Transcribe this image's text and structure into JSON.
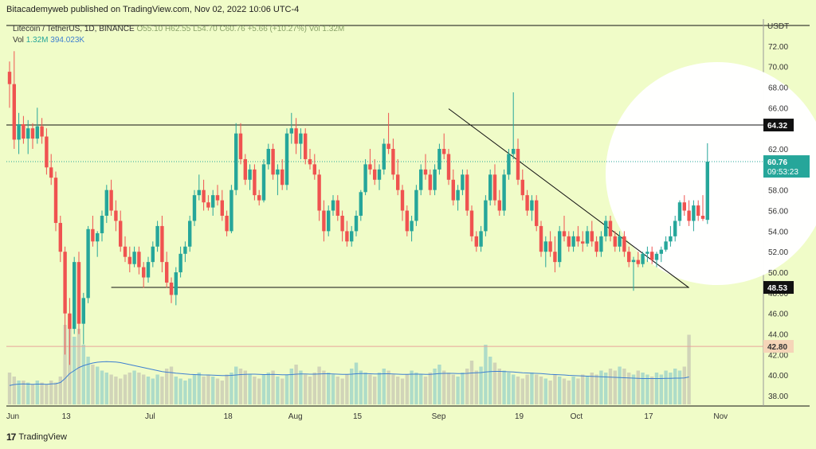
{
  "header": {
    "publish_text": "Bitacademyweb published on TradingView.com, Nov 02, 2022 10:06 UTC-4"
  },
  "legend": {
    "symbol": "Litecoin / TetherUS, 1D, BINANCE",
    "open": "O55.10",
    "high": "H62.55",
    "low": "L54.70",
    "close": "C60.76",
    "change": "+5.66 (+10.27%)",
    "volume": "Vol 1.32M",
    "vol_label": "Vol",
    "vol_value": "1.32M",
    "vol_ma": "394.023K"
  },
  "footer": {
    "brand": "TradingView",
    "logo": "17"
  },
  "colors": {
    "up": "#26a69a",
    "down": "#ef5350",
    "vol_ma": "#3d7fd1",
    "background": "#f0fcc8"
  },
  "chart_data": {
    "type": "candlestick",
    "currency_label": "USDT",
    "ylim": [
      37,
      74
    ],
    "y_ticks": [
      38,
      40,
      42,
      44,
      46,
      48,
      50,
      52,
      54,
      56,
      58,
      60,
      62,
      64,
      66,
      68,
      70,
      72
    ],
    "x_tick_labels": [
      {
        "label": "Jun",
        "day": 0
      },
      {
        "label": "13",
        "day": 12
      },
      {
        "label": "Jul",
        "day": 30
      },
      {
        "label": "18",
        "day": 47
      },
      {
        "label": "Aug",
        "day": 61
      },
      {
        "label": "15",
        "day": 75
      },
      {
        "label": "Sep",
        "day": 92
      },
      {
        "label": "19",
        "day": 110
      },
      {
        "label": "Oct",
        "day": 122
      },
      {
        "label": "17",
        "day": 138
      },
      {
        "label": "Nov",
        "day": 153
      }
    ],
    "price_levels": [
      {
        "value": 64.32,
        "label": "64.32"
      },
      {
        "value": 48.53,
        "label": "48.53"
      },
      {
        "value": 42.8,
        "label": "42.80"
      }
    ],
    "current_price": {
      "value": 60.76,
      "label": "60.76",
      "countdown": "09:53:23"
    },
    "trendline": {
      "start": {
        "day": 95,
        "price": 65.9
      },
      "end": {
        "day": 147,
        "price": 48.5
      }
    },
    "support_line": {
      "start_day": 22,
      "end_day": 147,
      "price": 48.53
    },
    "resistance_line": {
      "price": 64.32
    },
    "candles": [
      {
        "o": 69.5,
        "h": 70.5,
        "l": 66.0,
        "c": 68.3
      },
      {
        "o": 68.3,
        "h": 71.5,
        "l": 62.0,
        "c": 62.9
      },
      {
        "o": 62.9,
        "h": 65.5,
        "l": 61.5,
        "c": 64.4
      },
      {
        "o": 64.4,
        "h": 65.2,
        "l": 62.5,
        "c": 63.0
      },
      {
        "o": 63.0,
        "h": 64.8,
        "l": 61.5,
        "c": 64.0
      },
      {
        "o": 64.0,
        "h": 64.5,
        "l": 62.0,
        "c": 63.0
      },
      {
        "o": 63.0,
        "h": 66.0,
        "l": 62.5,
        "c": 64.2
      },
      {
        "o": 64.2,
        "h": 65.0,
        "l": 62.5,
        "c": 63.2
      },
      {
        "o": 63.2,
        "h": 64.0,
        "l": 59.5,
        "c": 60.2
      },
      {
        "o": 60.2,
        "h": 61.5,
        "l": 58.5,
        "c": 59.2
      },
      {
        "o": 59.2,
        "h": 59.8,
        "l": 54.0,
        "c": 54.8
      },
      {
        "o": 54.8,
        "h": 55.5,
        "l": 51.0,
        "c": 52.0
      },
      {
        "o": 52.0,
        "h": 52.5,
        "l": 42.0,
        "c": 46.0
      },
      {
        "o": 46.0,
        "h": 47.5,
        "l": 41.0,
        "c": 44.5
      },
      {
        "o": 44.5,
        "h": 51.5,
        "l": 44.0,
        "c": 51.0
      },
      {
        "o": 51.0,
        "h": 52.0,
        "l": 44.0,
        "c": 45.0
      },
      {
        "o": 45.0,
        "h": 48.0,
        "l": 43.0,
        "c": 47.5
      },
      {
        "o": 47.5,
        "h": 54.5,
        "l": 47.0,
        "c": 54.2
      },
      {
        "o": 54.2,
        "h": 55.5,
        "l": 52.5,
        "c": 53.0
      },
      {
        "o": 53.0,
        "h": 54.0,
        "l": 51.5,
        "c": 53.8
      },
      {
        "o": 53.8,
        "h": 56.0,
        "l": 53.0,
        "c": 55.5
      },
      {
        "o": 55.5,
        "h": 58.5,
        "l": 54.8,
        "c": 58.0
      },
      {
        "o": 58.0,
        "h": 59.0,
        "l": 55.5,
        "c": 56.0
      },
      {
        "o": 56.0,
        "h": 57.0,
        "l": 54.0,
        "c": 55.0
      },
      {
        "o": 55.0,
        "h": 56.0,
        "l": 52.0,
        "c": 52.5
      },
      {
        "o": 52.5,
        "h": 53.5,
        "l": 51.0,
        "c": 51.5
      },
      {
        "o": 51.5,
        "h": 52.5,
        "l": 50.0,
        "c": 50.8
      },
      {
        "o": 50.8,
        "h": 52.5,
        "l": 50.5,
        "c": 52.0
      },
      {
        "o": 52.0,
        "h": 52.5,
        "l": 49.8,
        "c": 50.5
      },
      {
        "o": 50.5,
        "h": 51.0,
        "l": 48.5,
        "c": 49.5
      },
      {
        "o": 49.5,
        "h": 51.5,
        "l": 49.0,
        "c": 51.0
      },
      {
        "o": 51.0,
        "h": 53.0,
        "l": 50.5,
        "c": 52.5
      },
      {
        "o": 52.5,
        "h": 55.0,
        "l": 52.0,
        "c": 54.5
      },
      {
        "o": 54.5,
        "h": 55.5,
        "l": 50.0,
        "c": 51.0
      },
      {
        "o": 51.0,
        "h": 52.0,
        "l": 48.5,
        "c": 49.0
      },
      {
        "o": 49.0,
        "h": 49.5,
        "l": 47.0,
        "c": 47.8
      },
      {
        "o": 47.8,
        "h": 50.5,
        "l": 46.8,
        "c": 50.0
      },
      {
        "o": 50.0,
        "h": 52.5,
        "l": 49.5,
        "c": 51.8
      },
      {
        "o": 51.8,
        "h": 53.0,
        "l": 51.0,
        "c": 52.5
      },
      {
        "o": 52.5,
        "h": 55.5,
        "l": 52.0,
        "c": 55.0
      },
      {
        "o": 55.0,
        "h": 58.0,
        "l": 54.5,
        "c": 57.5
      },
      {
        "o": 57.5,
        "h": 59.5,
        "l": 57.0,
        "c": 58.0
      },
      {
        "o": 58.0,
        "h": 59.0,
        "l": 56.0,
        "c": 56.8
      },
      {
        "o": 56.8,
        "h": 57.5,
        "l": 56.0,
        "c": 56.3
      },
      {
        "o": 56.3,
        "h": 58.0,
        "l": 55.5,
        "c": 57.5
      },
      {
        "o": 57.5,
        "h": 58.5,
        "l": 56.5,
        "c": 57.0
      },
      {
        "o": 57.0,
        "h": 58.0,
        "l": 55.0,
        "c": 55.5
      },
      {
        "o": 55.5,
        "h": 56.0,
        "l": 53.5,
        "c": 54.0
      },
      {
        "o": 54.0,
        "h": 58.5,
        "l": 53.8,
        "c": 58.0
      },
      {
        "o": 58.0,
        "h": 64.5,
        "l": 57.5,
        "c": 63.5
      },
      {
        "o": 63.5,
        "h": 64.5,
        "l": 60.5,
        "c": 61.0
      },
      {
        "o": 61.0,
        "h": 61.5,
        "l": 58.5,
        "c": 59.0
      },
      {
        "o": 59.0,
        "h": 60.5,
        "l": 58.0,
        "c": 60.0
      },
      {
        "o": 60.0,
        "h": 60.5,
        "l": 57.0,
        "c": 57.5
      },
      {
        "o": 57.5,
        "h": 58.0,
        "l": 56.5,
        "c": 57.0
      },
      {
        "o": 57.0,
        "h": 61.0,
        "l": 56.8,
        "c": 60.5
      },
      {
        "o": 60.5,
        "h": 62.5,
        "l": 60.0,
        "c": 62.0
      },
      {
        "o": 62.0,
        "h": 62.5,
        "l": 59.0,
        "c": 59.5
      },
      {
        "o": 59.5,
        "h": 60.5,
        "l": 57.5,
        "c": 60.0
      },
      {
        "o": 60.0,
        "h": 61.0,
        "l": 58.0,
        "c": 58.5
      },
      {
        "o": 58.5,
        "h": 64.0,
        "l": 58.0,
        "c": 63.5
      },
      {
        "o": 63.5,
        "h": 65.5,
        "l": 62.5,
        "c": 64.0
      },
      {
        "o": 64.0,
        "h": 65.0,
        "l": 61.5,
        "c": 62.5
      },
      {
        "o": 62.5,
        "h": 64.0,
        "l": 61.0,
        "c": 63.5
      },
      {
        "o": 63.5,
        "h": 64.0,
        "l": 60.5,
        "c": 61.0
      },
      {
        "o": 61.0,
        "h": 62.0,
        "l": 60.0,
        "c": 60.5
      },
      {
        "o": 60.5,
        "h": 61.5,
        "l": 59.0,
        "c": 59.5
      },
      {
        "o": 59.5,
        "h": 60.0,
        "l": 55.0,
        "c": 56.0
      },
      {
        "o": 56.0,
        "h": 57.0,
        "l": 53.0,
        "c": 54.0
      },
      {
        "o": 54.0,
        "h": 56.5,
        "l": 53.5,
        "c": 56.0
      },
      {
        "o": 56.0,
        "h": 57.5,
        "l": 55.5,
        "c": 57.0
      },
      {
        "o": 57.0,
        "h": 57.5,
        "l": 55.0,
        "c": 55.5
      },
      {
        "o": 55.5,
        "h": 56.0,
        "l": 53.0,
        "c": 54.0
      },
      {
        "o": 54.0,
        "h": 55.0,
        "l": 52.5,
        "c": 53.0
      },
      {
        "o": 53.0,
        "h": 54.5,
        "l": 52.5,
        "c": 54.0
      },
      {
        "o": 54.0,
        "h": 56.0,
        "l": 53.5,
        "c": 55.5
      },
      {
        "o": 55.5,
        "h": 58.0,
        "l": 55.0,
        "c": 57.8
      },
      {
        "o": 57.8,
        "h": 61.0,
        "l": 57.5,
        "c": 60.5
      },
      {
        "o": 60.5,
        "h": 62.0,
        "l": 59.5,
        "c": 60.0
      },
      {
        "o": 60.0,
        "h": 61.0,
        "l": 58.5,
        "c": 59.0
      },
      {
        "o": 59.0,
        "h": 60.5,
        "l": 58.0,
        "c": 60.0
      },
      {
        "o": 60.0,
        "h": 63.0,
        "l": 59.5,
        "c": 62.5
      },
      {
        "o": 62.5,
        "h": 65.5,
        "l": 61.5,
        "c": 62.0
      },
      {
        "o": 62.0,
        "h": 63.0,
        "l": 59.0,
        "c": 59.5
      },
      {
        "o": 59.5,
        "h": 61.0,
        "l": 57.5,
        "c": 58.0
      },
      {
        "o": 58.0,
        "h": 58.5,
        "l": 55.0,
        "c": 56.0
      },
      {
        "o": 56.0,
        "h": 56.5,
        "l": 53.5,
        "c": 54.0
      },
      {
        "o": 54.0,
        "h": 55.5,
        "l": 53.0,
        "c": 55.0
      },
      {
        "o": 55.0,
        "h": 58.5,
        "l": 54.5,
        "c": 58.0
      },
      {
        "o": 58.0,
        "h": 60.5,
        "l": 57.5,
        "c": 60.0
      },
      {
        "o": 60.0,
        "h": 61.5,
        "l": 59.0,
        "c": 59.5
      },
      {
        "o": 59.5,
        "h": 60.0,
        "l": 57.5,
        "c": 58.0
      },
      {
        "o": 58.0,
        "h": 60.5,
        "l": 57.5,
        "c": 60.0
      },
      {
        "o": 60.0,
        "h": 62.5,
        "l": 59.5,
        "c": 62.0
      },
      {
        "o": 62.0,
        "h": 63.5,
        "l": 61.0,
        "c": 61.5
      },
      {
        "o": 61.5,
        "h": 62.0,
        "l": 58.5,
        "c": 59.0
      },
      {
        "o": 59.0,
        "h": 60.0,
        "l": 56.5,
        "c": 57.0
      },
      {
        "o": 57.0,
        "h": 58.5,
        "l": 56.0,
        "c": 58.0
      },
      {
        "o": 58.0,
        "h": 60.0,
        "l": 57.5,
        "c": 59.5
      },
      {
        "o": 59.5,
        "h": 60.0,
        "l": 55.5,
        "c": 56.0
      },
      {
        "o": 56.0,
        "h": 56.5,
        "l": 53.0,
        "c": 53.5
      },
      {
        "o": 53.5,
        "h": 54.0,
        "l": 52.0,
        "c": 52.5
      },
      {
        "o": 52.5,
        "h": 54.5,
        "l": 52.0,
        "c": 54.0
      },
      {
        "o": 54.0,
        "h": 57.5,
        "l": 53.5,
        "c": 57.0
      },
      {
        "o": 57.0,
        "h": 60.0,
        "l": 56.5,
        "c": 59.5
      },
      {
        "o": 59.5,
        "h": 60.5,
        "l": 56.5,
        "c": 57.0
      },
      {
        "o": 57.0,
        "h": 58.0,
        "l": 55.5,
        "c": 56.0
      },
      {
        "o": 56.0,
        "h": 60.0,
        "l": 55.5,
        "c": 59.5
      },
      {
        "o": 59.5,
        "h": 62.0,
        "l": 59.0,
        "c": 61.5
      },
      {
        "o": 61.5,
        "h": 67.5,
        "l": 61.0,
        "c": 62.0
      },
      {
        "o": 62.0,
        "h": 63.0,
        "l": 58.5,
        "c": 59.0
      },
      {
        "o": 59.0,
        "h": 60.0,
        "l": 57.0,
        "c": 57.5
      },
      {
        "o": 57.5,
        "h": 58.0,
        "l": 55.5,
        "c": 56.0
      },
      {
        "o": 56.0,
        "h": 57.5,
        "l": 55.0,
        "c": 57.0
      },
      {
        "o": 57.0,
        "h": 57.5,
        "l": 54.0,
        "c": 54.5
      },
      {
        "o": 54.5,
        "h": 55.0,
        "l": 51.5,
        "c": 52.0
      },
      {
        "o": 52.0,
        "h": 53.5,
        "l": 50.5,
        "c": 53.0
      },
      {
        "o": 53.0,
        "h": 54.0,
        "l": 51.5,
        "c": 52.0
      },
      {
        "o": 52.0,
        "h": 53.5,
        "l": 50.0,
        "c": 51.0
      },
      {
        "o": 51.0,
        "h": 54.5,
        "l": 50.5,
        "c": 54.0
      },
      {
        "o": 54.0,
        "h": 55.5,
        "l": 53.0,
        "c": 53.5
      },
      {
        "o": 53.5,
        "h": 54.0,
        "l": 52.0,
        "c": 52.5
      },
      {
        "o": 52.5,
        "h": 54.0,
        "l": 52.0,
        "c": 53.5
      },
      {
        "o": 53.5,
        "h": 54.5,
        "l": 52.5,
        "c": 53.0
      },
      {
        "o": 53.0,
        "h": 54.0,
        "l": 52.0,
        "c": 52.8
      },
      {
        "o": 52.8,
        "h": 54.5,
        "l": 52.5,
        "c": 54.0
      },
      {
        "o": 54.0,
        "h": 55.0,
        "l": 52.5,
        "c": 53.0
      },
      {
        "o": 53.0,
        "h": 53.5,
        "l": 51.5,
        "c": 52.0
      },
      {
        "o": 52.0,
        "h": 54.0,
        "l": 51.5,
        "c": 53.5
      },
      {
        "o": 53.5,
        "h": 55.5,
        "l": 53.0,
        "c": 55.0
      },
      {
        "o": 55.0,
        "h": 55.5,
        "l": 53.0,
        "c": 53.5
      },
      {
        "o": 53.5,
        "h": 54.0,
        "l": 52.0,
        "c": 52.5
      },
      {
        "o": 52.5,
        "h": 54.0,
        "l": 52.0,
        "c": 53.5
      },
      {
        "o": 53.5,
        "h": 54.0,
        "l": 51.5,
        "c": 52.0
      },
      {
        "o": 52.0,
        "h": 52.5,
        "l": 50.5,
        "c": 51.0
      },
      {
        "o": 51.0,
        "h": 51.5,
        "l": 48.2,
        "c": 51.2
      },
      {
        "o": 51.2,
        "h": 52.0,
        "l": 50.5,
        "c": 50.8
      },
      {
        "o": 50.8,
        "h": 52.0,
        "l": 50.5,
        "c": 51.8
      },
      {
        "o": 51.8,
        "h": 52.5,
        "l": 51.0,
        "c": 52.0
      },
      {
        "o": 52.0,
        "h": 52.5,
        "l": 50.8,
        "c": 51.2
      },
      {
        "o": 51.2,
        "h": 52.0,
        "l": 50.5,
        "c": 51.8
      },
      {
        "o": 51.8,
        "h": 52.5,
        "l": 51.0,
        "c": 52.2
      },
      {
        "o": 52.2,
        "h": 53.5,
        "l": 52.0,
        "c": 53.0
      },
      {
        "o": 53.0,
        "h": 54.5,
        "l": 52.5,
        "c": 53.5
      },
      {
        "o": 53.5,
        "h": 55.5,
        "l": 53.0,
        "c": 55.0
      },
      {
        "o": 55.0,
        "h": 57.0,
        "l": 54.5,
        "c": 56.8
      },
      {
        "o": 56.8,
        "h": 57.5,
        "l": 55.5,
        "c": 56.0
      },
      {
        "o": 56.0,
        "h": 57.0,
        "l": 54.5,
        "c": 55.0
      },
      {
        "o": 55.0,
        "h": 57.0,
        "l": 54.0,
        "c": 56.5
      },
      {
        "o": 56.5,
        "h": 57.0,
        "l": 55.0,
        "c": 55.5
      },
      {
        "o": 55.5,
        "h": 57.5,
        "l": 55.0,
        "c": 55.2
      },
      {
        "o": 55.1,
        "h": 62.55,
        "l": 54.7,
        "c": 60.76
      }
    ],
    "volume": [
      16,
      14,
      12,
      12,
      11,
      10,
      12,
      11,
      10,
      12,
      11,
      14,
      40,
      45,
      34,
      38,
      30,
      24,
      20,
      19,
      17,
      16,
      15,
      14,
      13,
      15,
      16,
      17,
      16,
      15,
      14,
      13,
      15,
      14,
      18,
      19,
      14,
      13,
      12,
      13,
      15,
      16,
      14,
      15,
      14,
      13,
      12,
      15,
      16,
      19,
      18,
      17,
      15,
      14,
      13,
      15,
      16,
      17,
      14,
      13,
      15,
      18,
      20,
      17,
      15,
      14,
      16,
      19,
      17,
      16,
      15,
      14,
      13,
      15,
      18,
      21,
      17,
      16,
      15,
      14,
      16,
      18,
      17,
      15,
      14,
      13,
      15,
      17,
      16,
      15,
      14,
      16,
      18,
      20,
      17,
      16,
      15,
      14,
      16,
      18,
      22,
      17,
      19,
      30,
      24,
      21,
      18,
      17,
      16,
      15,
      14,
      13,
      15,
      16,
      15,
      14,
      13,
      12,
      15,
      14,
      13,
      12,
      14,
      13,
      15,
      14,
      16,
      15,
      17,
      16,
      18,
      17,
      19,
      18,
      16,
      15,
      17,
      16,
      15,
      14,
      16,
      15,
      17,
      16,
      18,
      17,
      19,
      35
    ],
    "volume_ma": [
      9.5,
      10,
      10.2,
      10.3,
      10.2,
      10.1,
      10.2,
      10.2,
      10.1,
      10.3,
      10.4,
      11,
      13,
      15.5,
      17,
      18.5,
      19.5,
      20.2,
      20.8,
      21.2,
      21.4,
      21.5,
      21.4,
      21.3,
      21,
      20.5,
      20,
      19.5,
      19,
      18.5,
      18,
      17.5,
      17,
      16.5,
      16.2,
      16,
      15.7,
      15.5,
      15.3,
      15.1,
      15,
      14.9,
      14.8,
      14.8,
      14.7,
      14.6,
      14.5,
      14.5,
      14.6,
      14.8,
      15,
      15.1,
      15.2,
      15.2,
      15.1,
      15,
      15,
      15.1,
      15,
      14.9,
      14.9,
      15,
      15.2,
      15.3,
      15.3,
      15.2,
      15.2,
      15.3,
      15.4,
      15.4,
      15.3,
      15.2,
      15.1,
      15.1,
      15.2,
      15.4,
      15.5,
      15.5,
      15.4,
      15.3,
      15.3,
      15.4,
      15.4,
      15.3,
      15.2,
      15.1,
      15.1,
      15.2,
      15.2,
      15.2,
      15.1,
      15.1,
      15.3,
      15.5,
      15.6,
      15.6,
      15.6,
      15.5,
      15.5,
      15.6,
      15.8,
      15.9,
      16,
      16.3,
      16.5,
      16.6,
      16.6,
      16.5,
      16.4,
      16.3,
      16.1,
      15.9,
      15.8,
      15.7,
      15.6,
      15.5,
      15.3,
      15.1,
      15,
      14.9,
      14.8,
      14.6,
      14.5,
      14.4,
      14.3,
      14.2,
      14.1,
      14,
      13.9,
      13.8,
      13.7,
      13.6,
      13.5,
      13.4,
      13.3,
      13.2,
      13.1,
      13,
      13,
      13,
      13,
      13,
      13.1,
      13.1,
      13.2,
      13.2,
      13.3,
      13.8
    ]
  }
}
